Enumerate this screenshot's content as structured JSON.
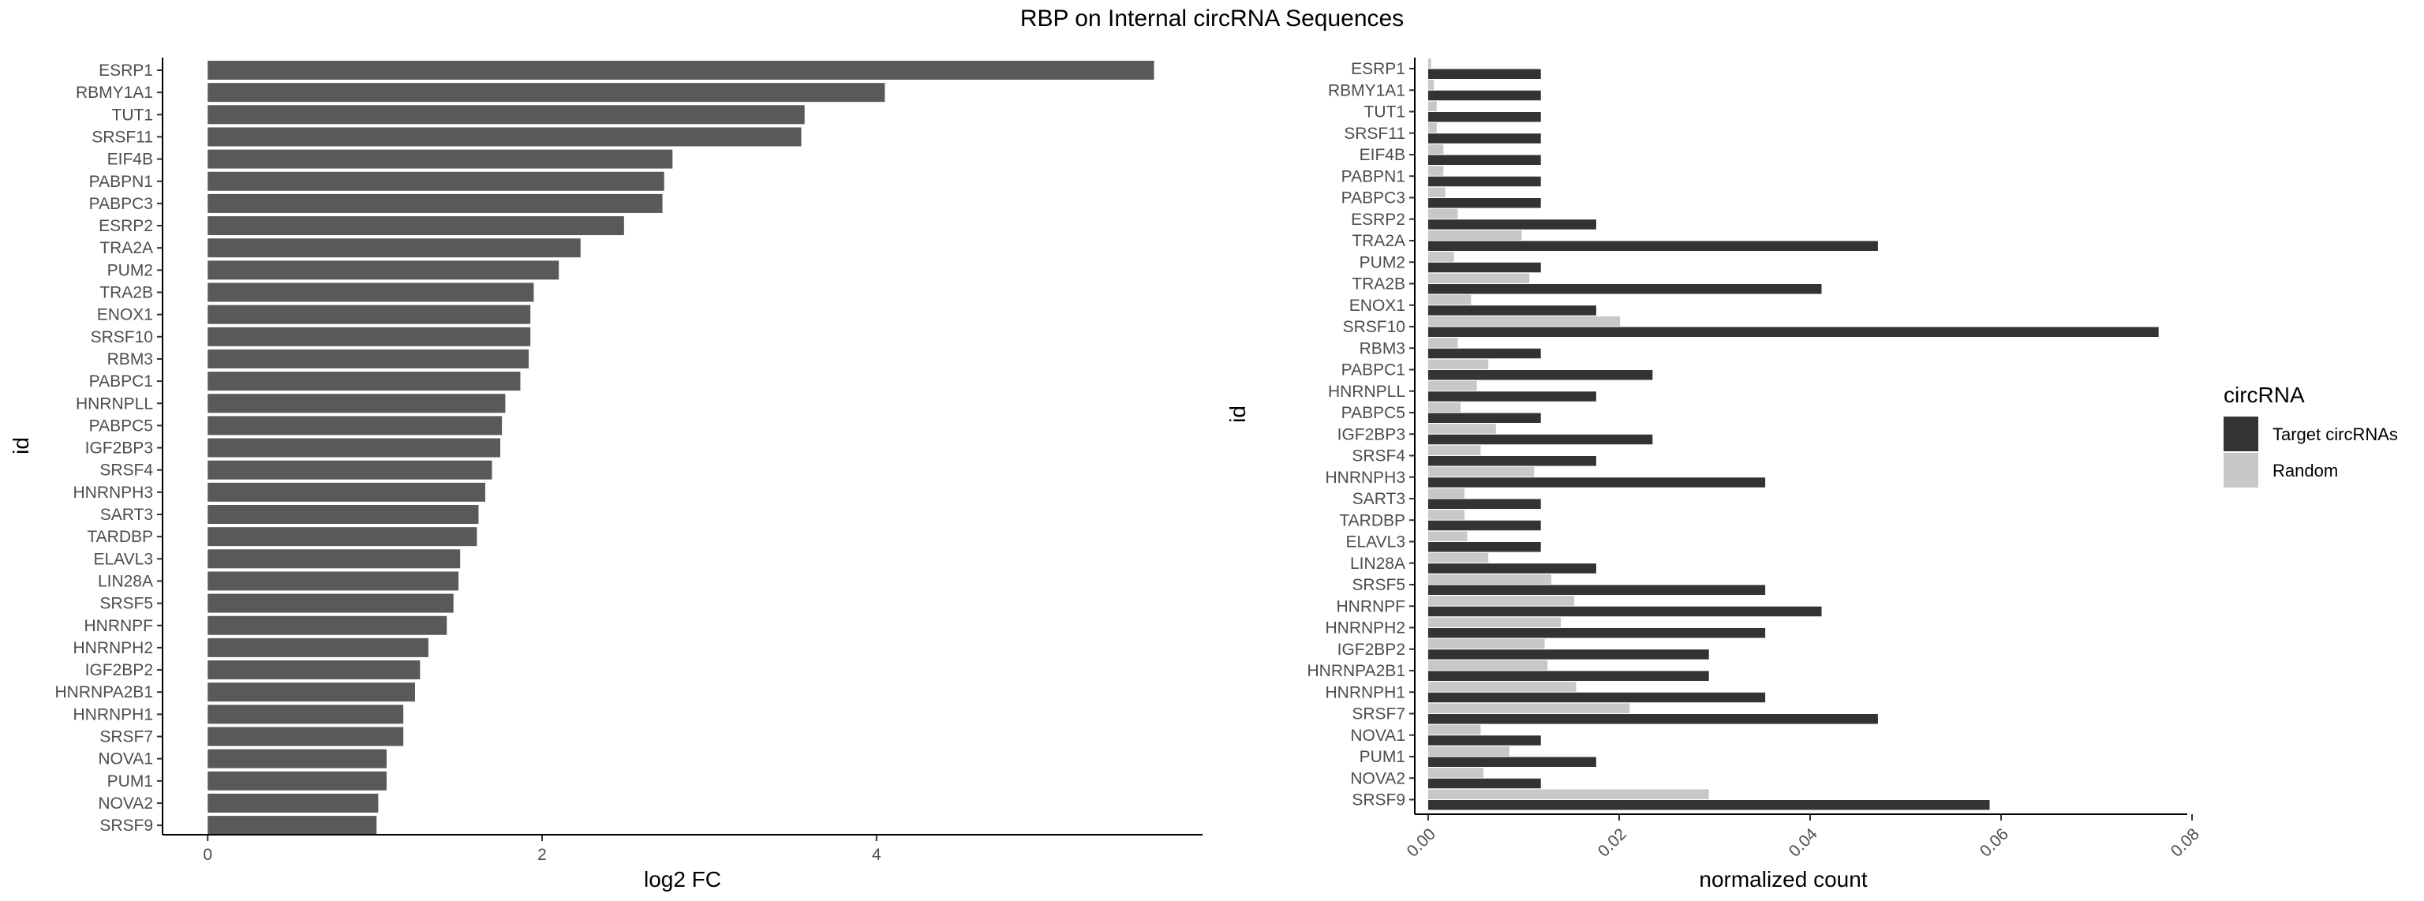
{
  "title": "RBP on Internal circRNA Sequences",
  "colors": {
    "bar": "#595959",
    "target": "#333333",
    "random": "#c8c8c8",
    "axis": "#000000"
  },
  "chart_data": [
    {
      "type": "bar",
      "orientation": "horizontal",
      "xlabel": "log2 FC",
      "ylabel": "id",
      "xlim": [
        -0.27,
        5.95
      ],
      "xticks": [
        0,
        2,
        4
      ],
      "grid": false,
      "categories": [
        "ESRP1",
        "RBMY1A1",
        "TUT1",
        "SRSF11",
        "EIF4B",
        "PABPN1",
        "PABPC3",
        "ESRP2",
        "TRA2A",
        "PUM2",
        "TRA2B",
        "ENOX1",
        "SRSF10",
        "RBM3",
        "PABPC1",
        "HNRNPLL",
        "PABPC5",
        "IGF2BP3",
        "SRSF4",
        "HNRNPH3",
        "SART3",
        "TARDBP",
        "ELAVL3",
        "LIN28A",
        "SRSF5",
        "HNRNPF",
        "HNRNPH2",
        "IGF2BP2",
        "HNRNPA2B1",
        "HNRNPH1",
        "SRSF7",
        "NOVA1",
        "PUM1",
        "NOVA2",
        "SRSF9"
      ],
      "values": [
        5.66,
        4.05,
        3.57,
        3.55,
        2.78,
        2.73,
        2.72,
        2.49,
        2.23,
        2.1,
        1.95,
        1.93,
        1.93,
        1.92,
        1.87,
        1.78,
        1.76,
        1.75,
        1.7,
        1.66,
        1.62,
        1.61,
        1.51,
        1.5,
        1.47,
        1.43,
        1.32,
        1.27,
        1.24,
        1.17,
        1.17,
        1.07,
        1.07,
        1.02,
        1.01
      ]
    },
    {
      "type": "bar",
      "orientation": "horizontal",
      "grouped": true,
      "xlabel": "normalized count",
      "ylabel": "id",
      "xlim": [
        -0.0014,
        0.0795
      ],
      "xticks": [
        0.0,
        0.02,
        0.04,
        0.06,
        0.08
      ],
      "xtick_labels": [
        "0.00",
        "0.02",
        "0.04",
        "0.06",
        "0.08"
      ],
      "grid": false,
      "legend": {
        "title": "circRNA",
        "position": "right"
      },
      "categories": [
        "ESRP1",
        "RBMY1A1",
        "TUT1",
        "SRSF11",
        "EIF4B",
        "PABPN1",
        "PABPC3",
        "ESRP2",
        "TRA2A",
        "PUM2",
        "TRA2B",
        "ENOX1",
        "SRSF10",
        "RBM3",
        "PABPC1",
        "HNRNPLL",
        "PABPC5",
        "IGF2BP3",
        "SRSF4",
        "HNRNPH3",
        "SART3",
        "TARDBP",
        "ELAVL3",
        "LIN28A",
        "SRSF5",
        "HNRNPF",
        "HNRNPH2",
        "IGF2BP2",
        "HNRNPA2B1",
        "HNRNPH1",
        "SRSF7",
        "NOVA1",
        "PUM1",
        "NOVA2",
        "SRSF9"
      ],
      "series": [
        {
          "name": "Target circRNAs",
          "values": [
            0.0118,
            0.0118,
            0.0118,
            0.0118,
            0.0118,
            0.0118,
            0.0118,
            0.0176,
            0.0471,
            0.0118,
            0.0412,
            0.0176,
            0.0765,
            0.0118,
            0.0235,
            0.0176,
            0.0118,
            0.0235,
            0.0176,
            0.0353,
            0.0118,
            0.0118,
            0.0118,
            0.0176,
            0.0353,
            0.0412,
            0.0353,
            0.0294,
            0.0294,
            0.0353,
            0.0471,
            0.0118,
            0.0176,
            0.0118,
            0.0588
          ]
        },
        {
          "name": "Random",
          "values": [
            0.0003,
            0.0006,
            0.0009,
            0.0009,
            0.0016,
            0.0016,
            0.0018,
            0.0031,
            0.0098,
            0.0027,
            0.0106,
            0.0045,
            0.0201,
            0.0031,
            0.0063,
            0.0051,
            0.0034,
            0.0071,
            0.0055,
            0.0111,
            0.0038,
            0.0038,
            0.0041,
            0.0063,
            0.0129,
            0.0153,
            0.0139,
            0.0122,
            0.0125,
            0.0155,
            0.0211,
            0.0055,
            0.0085,
            0.0058,
            0.0294
          ]
        }
      ]
    }
  ]
}
